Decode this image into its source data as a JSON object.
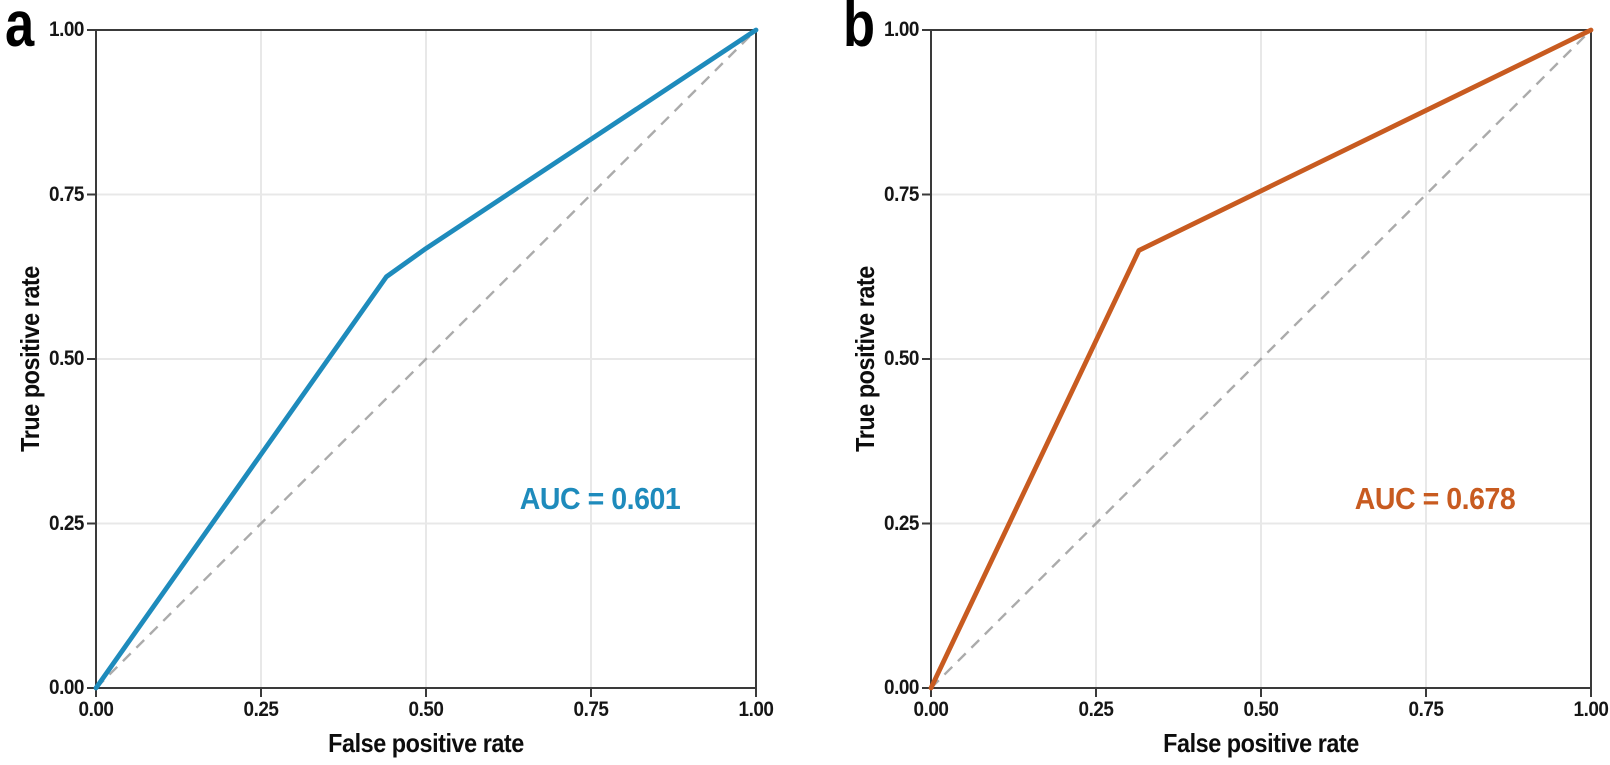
{
  "figure": {
    "panels": [
      {
        "label": "a",
        "curve_color": "#1e8bbc"
      },
      {
        "label": "b",
        "curve_color": "#c85b20"
      }
    ],
    "xlabel": "False positive rate",
    "ylabel": "True positive rate",
    "x_tick_labels": [
      "0.00",
      "0.25",
      "0.50",
      "0.75",
      "1.00"
    ],
    "y_tick_labels": [
      "0.00",
      "0.25",
      "0.50",
      "0.75",
      "1.00"
    ],
    "style": {
      "grid_color": "#e8e8e8",
      "spine_color": "#3a3a3a",
      "diagonal_color": "#ababab",
      "tick_text_color": "#161616",
      "background": "#ffffff"
    }
  },
  "chart_data": [
    {
      "type": "line",
      "panel": "a",
      "title": "",
      "xlabel": "False positive rate",
      "ylabel": "True positive rate",
      "xlim": [
        0,
        1
      ],
      "ylim": [
        0,
        1
      ],
      "x_ticks": [
        0,
        0.25,
        0.5,
        0.75,
        1
      ],
      "y_ticks": [
        0,
        0.25,
        0.5,
        0.75,
        1
      ],
      "grid": true,
      "legend": false,
      "series": [
        {
          "name": "ROC curve",
          "color": "#1e8bbc",
          "dash": null,
          "x": [
            0,
            0.44,
            0.5,
            1
          ],
          "y": [
            0,
            0.625,
            0.668,
            1
          ]
        },
        {
          "name": "Chance diagonal",
          "color": "#ababab",
          "dash": "11 8",
          "x": [
            0,
            1
          ],
          "y": [
            0,
            1
          ]
        }
      ],
      "annotations": [
        {
          "text": "AUC = 0.601",
          "x": 0.763,
          "y": 0.287,
          "color": "#1e8bbc"
        }
      ],
      "auc": 0.601
    },
    {
      "type": "line",
      "panel": "b",
      "title": "",
      "xlabel": "False positive rate",
      "ylabel": "True positive rate",
      "xlim": [
        0,
        1
      ],
      "ylim": [
        0,
        1
      ],
      "x_ticks": [
        0,
        0.25,
        0.5,
        0.75,
        1
      ],
      "y_ticks": [
        0,
        0.25,
        0.5,
        0.75,
        1
      ],
      "grid": true,
      "legend": false,
      "series": [
        {
          "name": "ROC curve",
          "color": "#c85b20",
          "dash": null,
          "x": [
            0,
            0.315,
            1
          ],
          "y": [
            0,
            0.665,
            1
          ]
        },
        {
          "name": "Chance diagonal",
          "color": "#ababab",
          "dash": "11 8",
          "x": [
            0,
            1
          ],
          "y": [
            0,
            1
          ]
        }
      ],
      "annotations": [
        {
          "text": "AUC = 0.678",
          "x": 0.763,
          "y": 0.287,
          "color": "#c85b20"
        }
      ],
      "auc": 0.678
    }
  ]
}
